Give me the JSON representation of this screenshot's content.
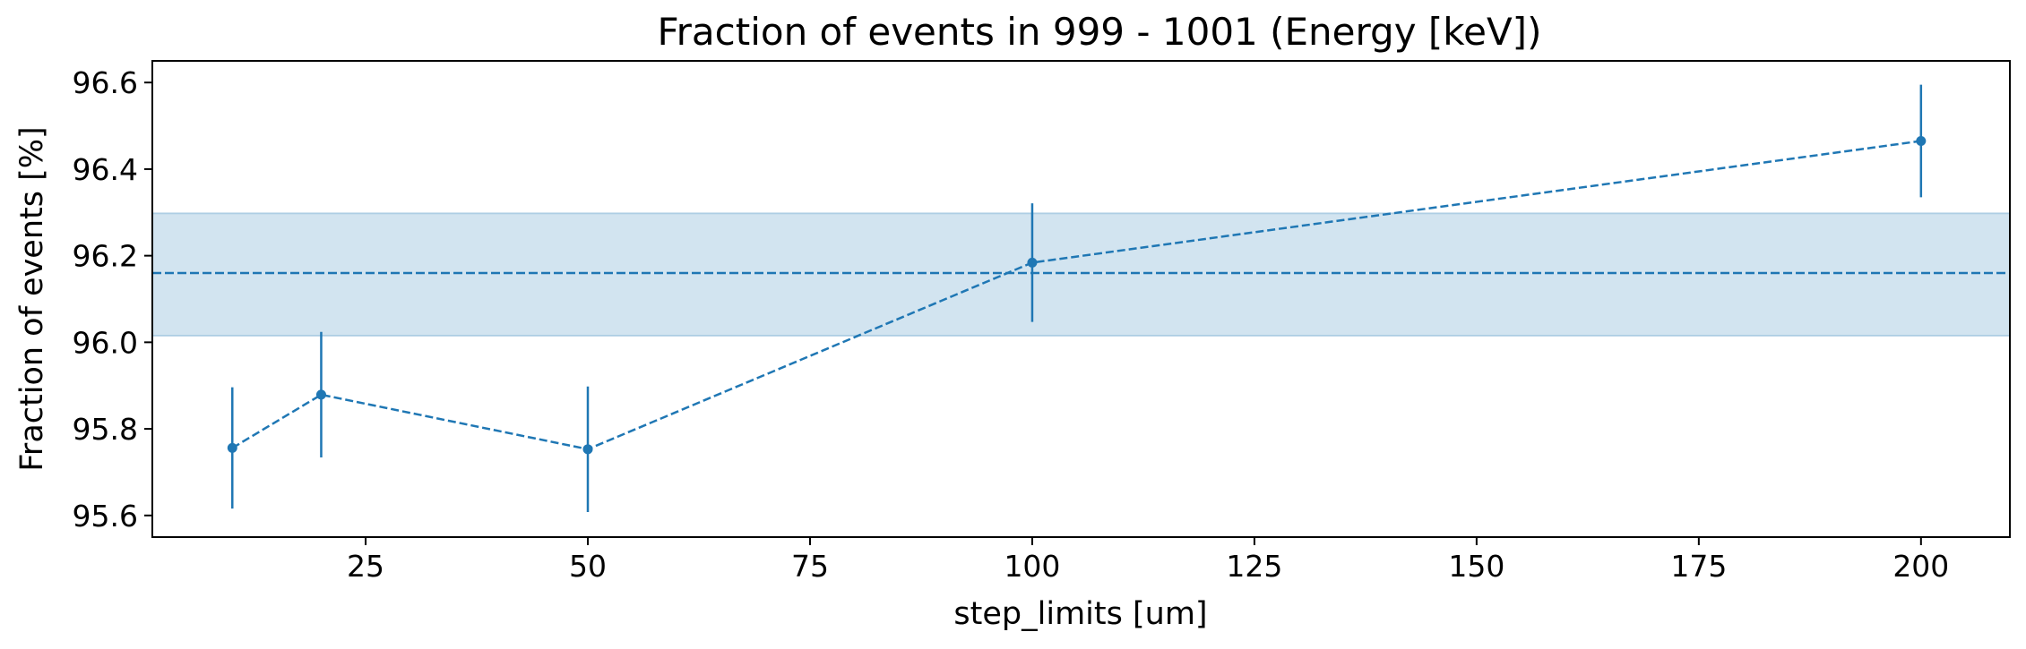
{
  "chart_data": {
    "type": "line",
    "title": "Fraction of events in 999 - 1001 (Energy [keV])",
    "xlabel": "step_limits [um]",
    "ylabel": "Fraction of events [%]",
    "xlim": [
      1,
      210
    ],
    "ylim": [
      95.55,
      96.65
    ],
    "xticks": [
      25,
      50,
      75,
      100,
      125,
      150,
      175,
      200
    ],
    "yticks": [
      95.6,
      95.8,
      96.0,
      96.2,
      96.4,
      96.6
    ],
    "grid": false,
    "legend": "none",
    "series": [
      {
        "x": [
          10,
          20,
          50,
          100,
          200
        ],
        "y": [
          95.756,
          95.879,
          95.753,
          96.184,
          96.465
        ],
        "yerr": [
          0.14,
          0.145,
          0.145,
          0.137,
          0.13
        ],
        "line_style": "dashed",
        "marker": "circle",
        "color": "#1f77b4"
      }
    ],
    "reference": {
      "mean": 96.16,
      "band": [
        96.015,
        96.298
      ],
      "line_style": "dashed",
      "color": "#1f77b4",
      "band_color": "#1f77b4"
    }
  }
}
